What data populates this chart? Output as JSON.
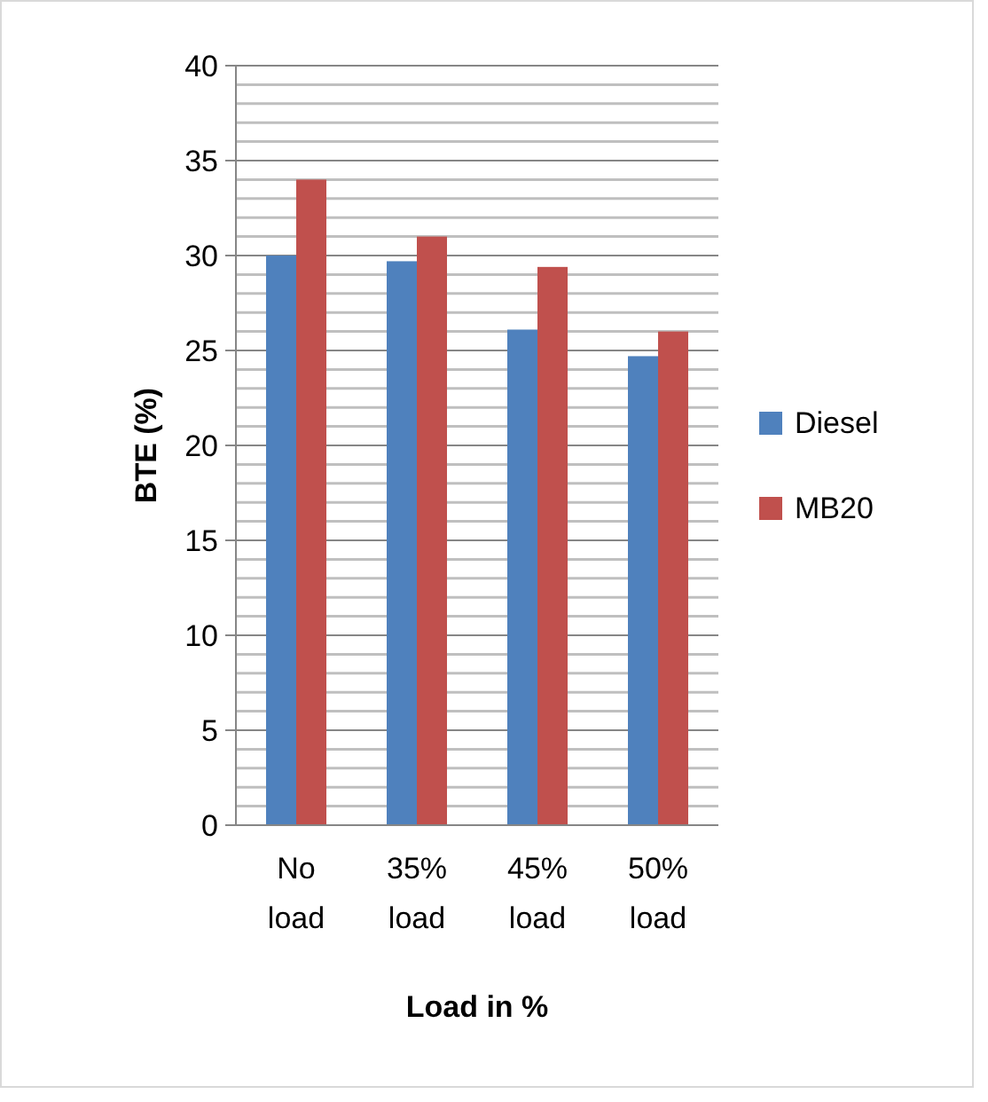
{
  "chart_data": {
    "type": "bar",
    "xlabel": "Load in  %",
    "ylabel": "BTE (%)",
    "categories": [
      "No load",
      "35% load",
      "45% load",
      "50% load"
    ],
    "series": [
      {
        "name": "Diesel",
        "color": "#4f81bd",
        "values": [
          30,
          29.7,
          26.1,
          24.7
        ]
      },
      {
        "name": "MB20",
        "color": "#c0504d",
        "values": [
          34,
          31,
          29.4,
          26
        ]
      }
    ],
    "ylim": [
      0,
      40
    ],
    "yticks": [
      0,
      {
        "value": 1,
        "label": null
      },
      {
        "value": 2,
        "label": null
      },
      {
        "value": 3,
        "label": null
      },
      {
        "value": 4,
        "label": null
      },
      5,
      {
        "value": 6,
        "label": null
      },
      {
        "value": 7,
        "label": null
      },
      {
        "value": 8,
        "label": null
      },
      {
        "value": 9,
        "label": null
      },
      10,
      {
        "value": 11,
        "label": null
      },
      {
        "value": 12,
        "label": null
      },
      {
        "value": 13,
        "label": null
      },
      {
        "value": 14,
        "label": null
      },
      15,
      {
        "value": 16,
        "label": null
      },
      {
        "value": 17,
        "label": null
      },
      {
        "value": 18,
        "label": null
      },
      {
        "value": 19,
        "label": null
      },
      20,
      {
        "value": 21,
        "label": null
      },
      {
        "value": 22,
        "label": null
      },
      {
        "value": 23,
        "label": null
      },
      {
        "value": 24,
        "label": null
      },
      25,
      {
        "value": 26,
        "label": null
      },
      {
        "value": 27,
        "label": null
      },
      {
        "value": 28,
        "label": null
      },
      {
        "value": 29,
        "label": null
      },
      30,
      {
        "value": 31,
        "label": null
      },
      {
        "value": 32,
        "label": null
      },
      {
        "value": 33,
        "label": null
      },
      {
        "value": 34,
        "label": null
      },
      35,
      {
        "value": 36,
        "label": null
      },
      {
        "value": 37,
        "label": null
      },
      {
        "value": 38,
        "label": null
      },
      {
        "value": 39,
        "label": null
      },
      40
    ],
    "grid": true,
    "legend": "right"
  }
}
